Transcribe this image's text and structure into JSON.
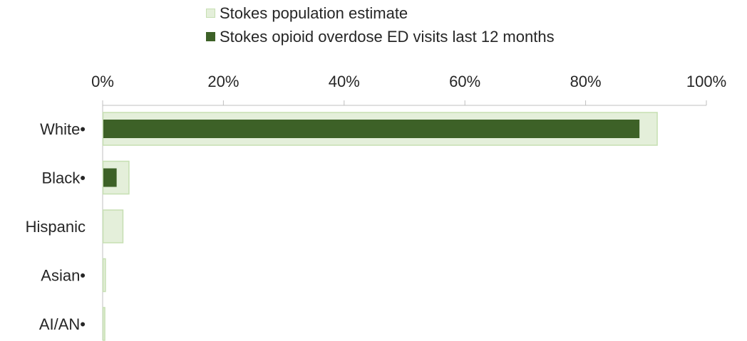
{
  "chart_data": {
    "type": "bar",
    "orientation": "horizontal",
    "categories": [
      "White•",
      "Black•",
      "Hispanic",
      "Asian•",
      "AI/AN•"
    ],
    "series": [
      {
        "name": "Stokes population estimate",
        "values": [
          91.8,
          4.3,
          3.3,
          0.4,
          0.3
        ],
        "color": "#e4efda",
        "border": "#c6dfb2"
      },
      {
        "name": "Stokes opioid overdose ED visits last 12 months",
        "values": [
          88.8,
          2.2,
          0,
          0,
          0
        ],
        "color": "#3d6127"
      }
    ],
    "xlim": [
      0,
      100
    ],
    "xticks": [
      "0%",
      "20%",
      "40%",
      "60%",
      "80%",
      "100%"
    ],
    "axis_position": "top",
    "legend_position": "top",
    "grid": false
  }
}
